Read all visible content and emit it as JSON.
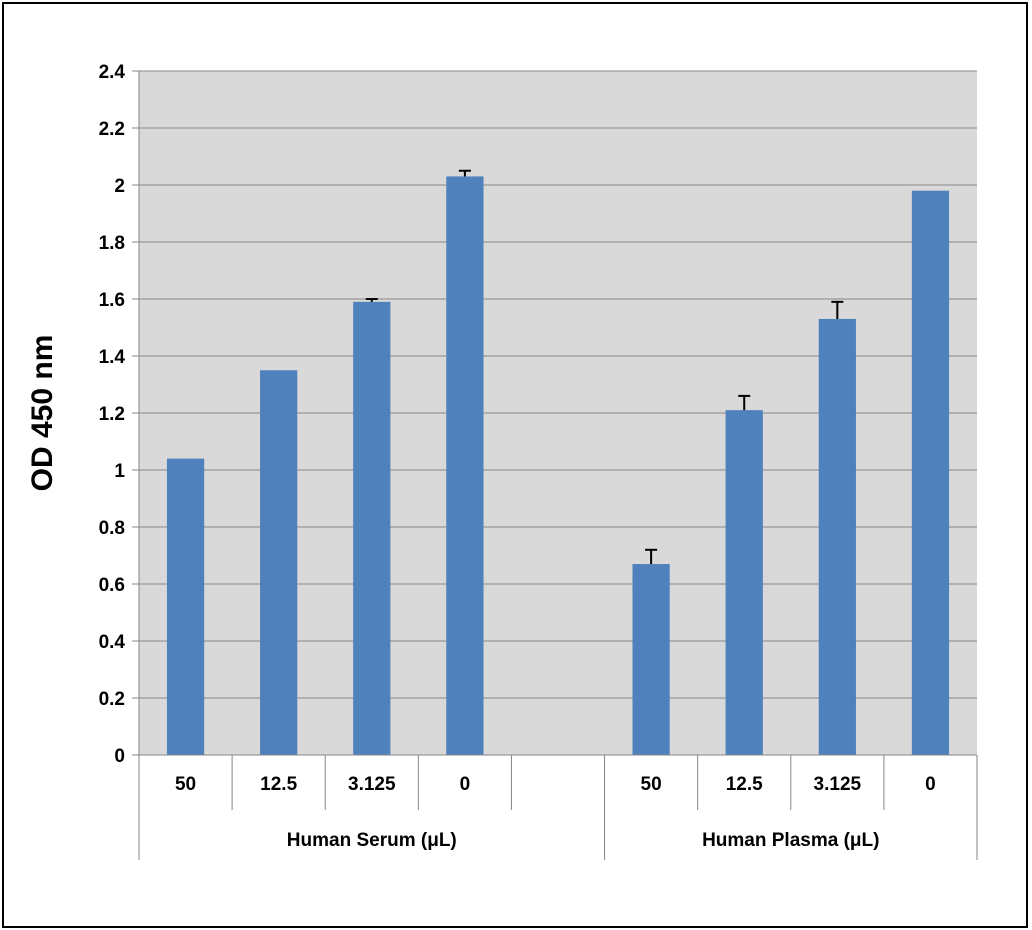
{
  "chart_data": {
    "type": "bar",
    "title": "",
    "ylabel": "OD 450 nm",
    "ylim": [
      0,
      2.4
    ],
    "ytick_step": 0.2,
    "yticks": [
      "0",
      "0.2",
      "0.4",
      "0.6",
      "0.8",
      "1",
      "1.2",
      "1.4",
      "1.6",
      "1.8",
      "2",
      "2.2",
      "2.4"
    ],
    "grid": true,
    "bar_color": "#4F81BD",
    "plot_background": "#D9D9D9",
    "categories": [
      "50",
      "12.5",
      "3.125",
      "0",
      "",
      "50",
      "12.5",
      "3.125",
      "0"
    ],
    "values": [
      1.04,
      1.35,
      1.59,
      2.03,
      null,
      0.67,
      1.21,
      1.53,
      1.98
    ],
    "errors": [
      0,
      0,
      0.01,
      0.02,
      null,
      0.05,
      0.05,
      0.06,
      0
    ],
    "groups": [
      {
        "label": "Human Serum (μL)",
        "start": 0,
        "end": 5
      },
      {
        "label": "Human Plasma (μL)",
        "start": 5,
        "end": 9
      }
    ]
  }
}
